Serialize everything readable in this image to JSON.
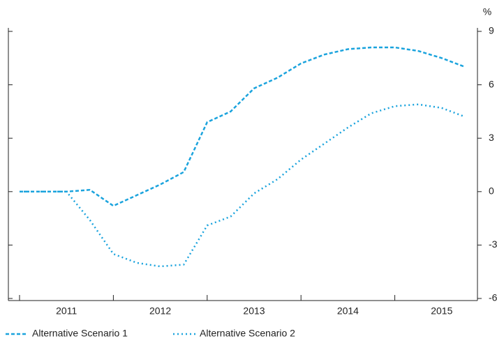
{
  "chart_data": {
    "type": "line",
    "y_label": "%",
    "categories": [
      null,
      null,
      "2011",
      null,
      null,
      null,
      "2012",
      null,
      null,
      null,
      "2013",
      null,
      null,
      null,
      "2014",
      null,
      null,
      null,
      "2015",
      null
    ],
    "series": [
      {
        "name": "Alternative Scenario 1",
        "color": "#1aa3dd",
        "style": "dashed",
        "values": [
          0,
          0,
          0,
          0.1,
          -0.8,
          -0.2,
          0.4,
          1.1,
          3.9,
          4.5,
          5.8,
          6.4,
          7.2,
          7.7,
          8.0,
          8.1,
          8.1,
          7.9,
          7.5,
          7.0
        ]
      },
      {
        "name": "Alternative Scenario 2",
        "color": "#1aa3dd",
        "style": "dotted",
        "values": [
          0,
          0,
          0,
          -1.6,
          -3.5,
          -4.0,
          -4.2,
          -4.1,
          -1.9,
          -1.4,
          -0.1,
          0.7,
          1.8,
          2.7,
          3.6,
          4.4,
          4.8,
          4.9,
          4.7,
          4.2
        ]
      }
    ],
    "ylim": [
      -6,
      9
    ],
    "yticks": [
      -6,
      -3,
      0,
      3,
      6,
      9
    ],
    "grid": false,
    "legend": "bottom-left"
  }
}
